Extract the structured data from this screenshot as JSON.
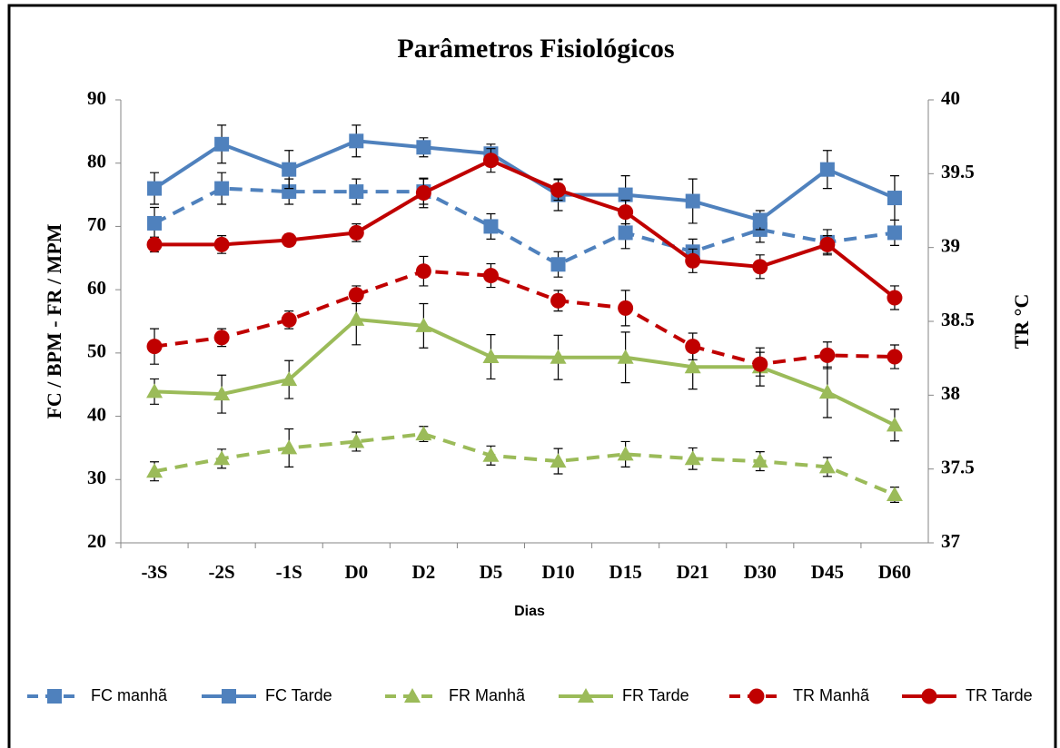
{
  "chart_data": {
    "type": "line",
    "title": "Parâmetros Fisiológicos",
    "x_label": "Dias",
    "y_label": "FC / BPM - FR / MPM",
    "y2_label": "TR  °C",
    "categories": [
      "-3S",
      "-2S",
      "-1S",
      "D0",
      "D2",
      "D5",
      "D10",
      "D15",
      "D21",
      "D30",
      "D45",
      "D60"
    ],
    "ylim": [
      20,
      90
    ],
    "yticks": [
      20,
      30,
      40,
      50,
      60,
      70,
      80,
      90
    ],
    "y2lim": [
      37,
      40
    ],
    "y2ticks": [
      37,
      37.5,
      38,
      38.5,
      39,
      39.5,
      40
    ],
    "legend": "bottom",
    "series": [
      {
        "name": "FC manhã",
        "color": "#4f81bd",
        "dash": true,
        "marker": "square",
        "values": [
          70.5,
          76,
          75.5,
          75.5,
          75.5,
          70,
          64,
          69,
          66,
          69.5,
          67.5,
          69
        ],
        "errors": [
          2.5,
          2.5,
          2,
          2,
          2,
          2,
          2,
          2.5,
          2,
          2,
          2,
          2
        ]
      },
      {
        "name": "FC Tarde",
        "color": "#4f81bd",
        "dash": false,
        "marker": "square",
        "values": [
          76,
          83,
          79,
          83.5,
          82.5,
          81.5,
          75,
          75,
          74,
          71,
          79,
          74.5
        ],
        "errors": [
          2.5,
          3,
          3,
          2.5,
          1.5,
          1.5,
          2.5,
          3,
          3.5,
          1.5,
          3,
          3.5
        ]
      },
      {
        "name": "FR Manhã",
        "color": "#9bbb59",
        "dash": true,
        "marker": "triangle",
        "values": [
          31.3,
          33.3,
          35,
          36,
          37.2,
          33.8,
          32.9,
          34,
          33.3,
          32.9,
          32,
          27.6
        ],
        "errors": [
          1.5,
          1.5,
          3,
          1.5,
          1.2,
          1.5,
          2,
          2,
          1.7,
          1.5,
          1.5,
          1.2
        ]
      },
      {
        "name": "FR Tarde",
        "color": "#9bbb59",
        "dash": false,
        "marker": "triangle",
        "values": [
          43.9,
          43.5,
          45.8,
          55.3,
          54.3,
          49.4,
          49.3,
          49.3,
          47.8,
          47.8,
          43.8,
          38.6
        ],
        "errors": [
          2,
          3,
          3,
          4,
          3.5,
          3.5,
          3.5,
          4,
          3.5,
          3,
          4,
          2.5
        ]
      },
      {
        "name": "TR Manhã",
        "color": "#c00000",
        "dash": true,
        "marker": "circle",
        "axis": "y2",
        "values": [
          38.33,
          38.39,
          38.51,
          38.68,
          38.84,
          38.81,
          38.64,
          38.59,
          38.33,
          38.21,
          38.27,
          38.26
        ],
        "errors": [
          0.12,
          0.06,
          0.06,
          0.06,
          0.1,
          0.08,
          0.07,
          0.12,
          0.09,
          0.08,
          0.09,
          0.08
        ]
      },
      {
        "name": "TR Tarde",
        "color": "#c00000",
        "dash": false,
        "marker": "circle",
        "axis": "y2",
        "values": [
          39.02,
          39.02,
          39.05,
          39.1,
          39.37,
          39.59,
          39.39,
          39.24,
          38.91,
          38.87,
          39.02,
          38.66
        ],
        "errors": [
          0.05,
          0.06,
          0.04,
          0.06,
          0.1,
          0.08,
          0.07,
          0.08,
          0.08,
          0.08,
          0.06,
          0.08
        ]
      }
    ]
  }
}
